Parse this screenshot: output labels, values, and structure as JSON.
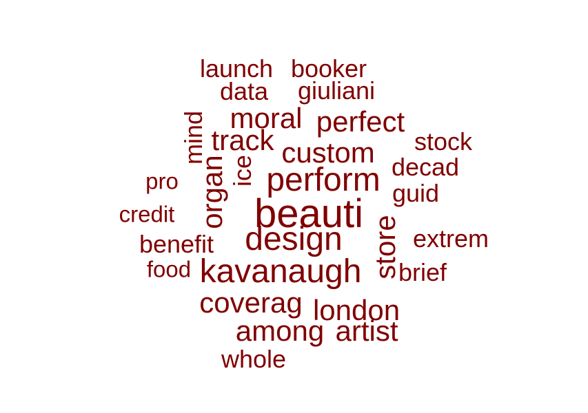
{
  "colors": {
    "word": "#800000",
    "background": "#ffffff"
  },
  "words": [
    {
      "text": "launch",
      "weight": 2
    },
    {
      "text": "booker",
      "weight": 2
    },
    {
      "text": "data",
      "weight": 2
    },
    {
      "text": "giuliani",
      "weight": 2
    },
    {
      "text": "moral",
      "weight": 3
    },
    {
      "text": "perfect",
      "weight": 3
    },
    {
      "text": "mind",
      "weight": 2,
      "vertical": true
    },
    {
      "text": "track",
      "weight": 3
    },
    {
      "text": "stock",
      "weight": 2
    },
    {
      "text": "custom",
      "weight": 3
    },
    {
      "text": "decad",
      "weight": 2
    },
    {
      "text": "pro",
      "weight": 1
    },
    {
      "text": "organ",
      "weight": 3,
      "vertical": true
    },
    {
      "text": "ice",
      "weight": 2,
      "vertical": true
    },
    {
      "text": "perform",
      "weight": 4
    },
    {
      "text": "guid",
      "weight": 2
    },
    {
      "text": "credit",
      "weight": 1
    },
    {
      "text": "beauti",
      "weight": 5
    },
    {
      "text": "store",
      "weight": 3,
      "vertical": true
    },
    {
      "text": "design",
      "weight": 4
    },
    {
      "text": "extrem",
      "weight": 2
    },
    {
      "text": "benefit",
      "weight": 2
    },
    {
      "text": "food",
      "weight": 1
    },
    {
      "text": "kavanaugh",
      "weight": 4
    },
    {
      "text": "brief",
      "weight": 2
    },
    {
      "text": "coverag",
      "weight": 3
    },
    {
      "text": "london",
      "weight": 3
    },
    {
      "text": "among",
      "weight": 3
    },
    {
      "text": "artist",
      "weight": 3
    },
    {
      "text": "whole",
      "weight": 2
    }
  ]
}
